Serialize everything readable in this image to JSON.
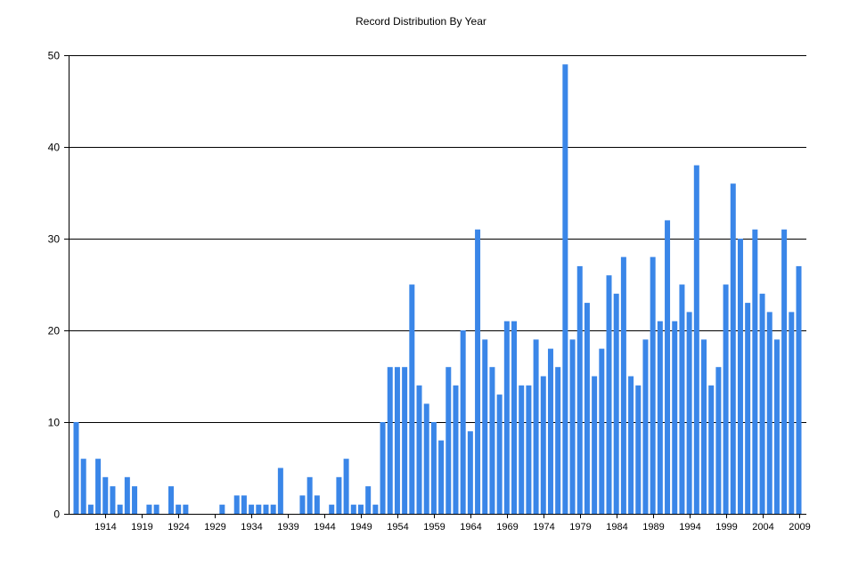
{
  "chart_data": {
    "type": "bar",
    "title": "Record Distribution By Year",
    "xlabel": "",
    "ylabel": "",
    "ylim": [
      0,
      50
    ],
    "yticks": [
      0,
      10,
      20,
      30,
      40,
      50
    ],
    "grid": "horizontal",
    "bar_color": "#3a86e8",
    "x_tick_labels": [
      "1914",
      "1919",
      "1924",
      "1929",
      "1934",
      "1939",
      "1944",
      "1949",
      "1954",
      "1959",
      "1964",
      "1969",
      "1974",
      "1979",
      "1984",
      "1989",
      "1994",
      "1999",
      "2004",
      "2009"
    ],
    "categories": [
      1910,
      1911,
      1912,
      1913,
      1914,
      1915,
      1916,
      1917,
      1918,
      1919,
      1920,
      1921,
      1922,
      1923,
      1924,
      1925,
      1926,
      1927,
      1928,
      1929,
      1930,
      1931,
      1932,
      1933,
      1934,
      1935,
      1936,
      1937,
      1938,
      1939,
      1940,
      1941,
      1942,
      1943,
      1944,
      1945,
      1946,
      1947,
      1948,
      1949,
      1950,
      1951,
      1952,
      1953,
      1954,
      1955,
      1956,
      1957,
      1958,
      1959,
      1960,
      1961,
      1962,
      1963,
      1964,
      1965,
      1966,
      1967,
      1968,
      1969,
      1970,
      1971,
      1972,
      1973,
      1974,
      1975,
      1976,
      1977,
      1978,
      1979,
      1980,
      1981,
      1982,
      1983,
      1984,
      1985,
      1986,
      1987,
      1988,
      1989,
      1990,
      1991,
      1992,
      1993,
      1994,
      1995,
      1996,
      1997,
      1998,
      1999,
      2000,
      2001,
      2002,
      2003,
      2004,
      2005,
      2006,
      2007,
      2008,
      2009
    ],
    "values": [
      10,
      6,
      1,
      6,
      4,
      3,
      1,
      4,
      3,
      0,
      1,
      1,
      0,
      3,
      1,
      1,
      0,
      0,
      0,
      0,
      1,
      0,
      2,
      2,
      1,
      1,
      1,
      1,
      5,
      0,
      0,
      2,
      4,
      2,
      0,
      1,
      4,
      6,
      1,
      1,
      3,
      1,
      10,
      16,
      16,
      16,
      25,
      14,
      12,
      10,
      8,
      16,
      14,
      20,
      9,
      31,
      19,
      16,
      13,
      21,
      21,
      14,
      14,
      19,
      15,
      18,
      16,
      49,
      19,
      27,
      23,
      15,
      18,
      26,
      24,
      28,
      15,
      14,
      19,
      28,
      21,
      32,
      21,
      25,
      22,
      38,
      19,
      14,
      16,
      25,
      36,
      30,
      23,
      31,
      24,
      22,
      19,
      31,
      22,
      27
    ]
  }
}
